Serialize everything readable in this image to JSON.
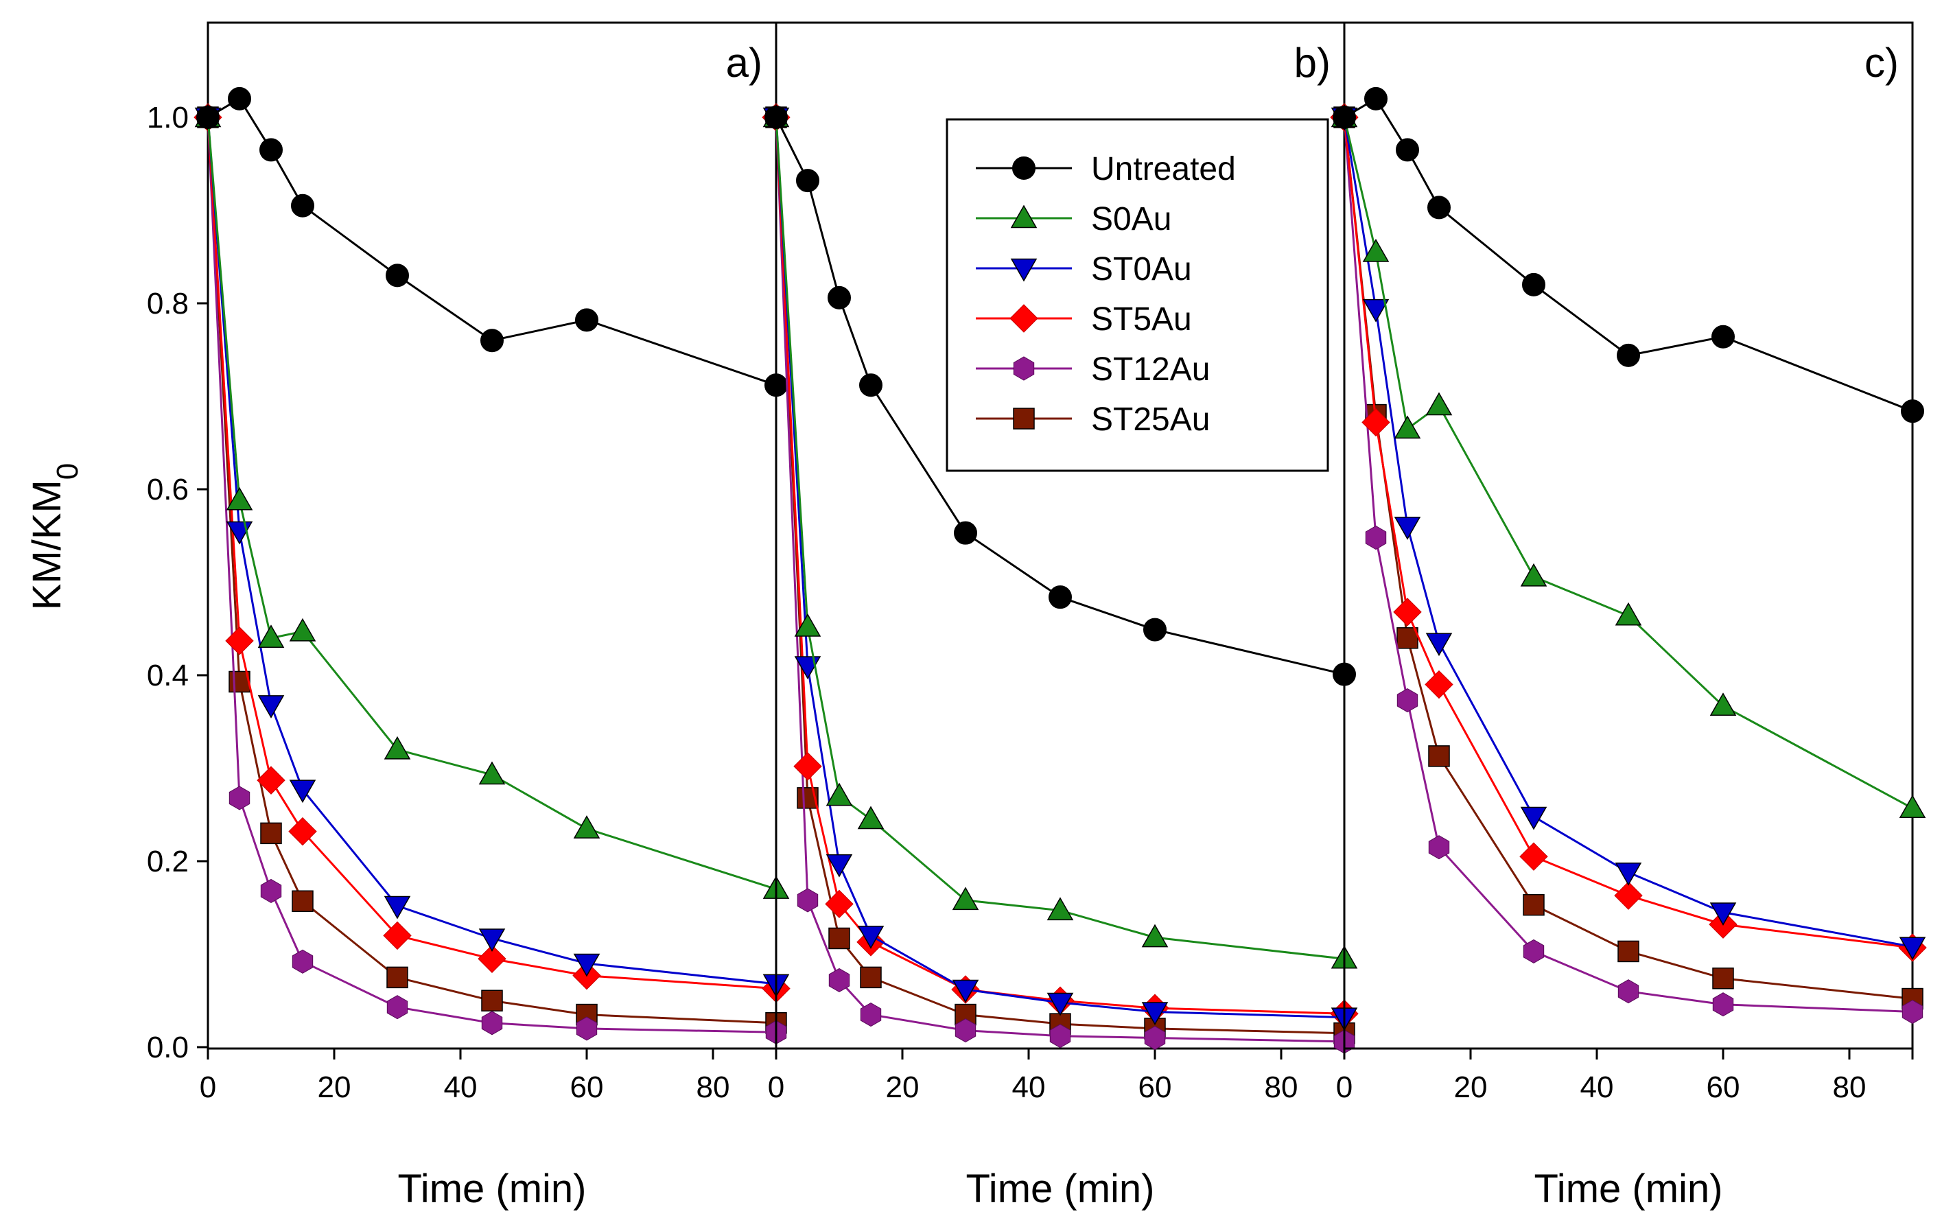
{
  "chart_data": {
    "type": "line",
    "ylabel": "KM/KM",
    "ylabel_subscript": "0",
    "ylim": [
      0,
      1.1
    ],
    "yticks": [
      "0.0",
      "0.2",
      "0.4",
      "0.6",
      "0.8",
      "1.0"
    ],
    "ytick_values": [
      0,
      0.2,
      0.4,
      0.6,
      0.8,
      1.0
    ],
    "legend_position": "upper-middle (panel b)",
    "grid": false,
    "series_styles": [
      {
        "name": "Untreated",
        "color": "#000000",
        "marker": "circle"
      },
      {
        "name": "S0Au",
        "color": "#1a8a1a",
        "marker": "triangle-up"
      },
      {
        "name": "ST0Au",
        "color": "#0000cc",
        "marker": "triangle-down"
      },
      {
        "name": "ST5Au",
        "color": "#ff0000",
        "marker": "diamond"
      },
      {
        "name": "ST12Au",
        "color": "#8e1a8e",
        "marker": "hexagon"
      },
      {
        "name": "ST25Au",
        "color": "#7a1a00",
        "marker": "square"
      }
    ],
    "panels": [
      {
        "label": "a)",
        "xlabel": "Time (min)",
        "xlim": [
          0,
          90
        ],
        "xticks": [
          "0",
          "20",
          "40",
          "60",
          "80"
        ],
        "xtick_values": [
          0,
          20,
          40,
          60,
          80
        ],
        "x": [
          0,
          5,
          10,
          15,
          30,
          45,
          60,
          90
        ],
        "series": [
          {
            "name": "Untreated",
            "values": [
              1.0,
              1.02,
              0.965,
              0.905,
              0.83,
              0.76,
              0.782,
              0.712
            ]
          },
          {
            "name": "S0Au",
            "values": [
              1.0,
              0.588,
              0.44,
              0.447,
              0.32,
              0.293,
              0.235,
              0.17
            ]
          },
          {
            "name": "ST0Au",
            "values": [
              1.0,
              0.555,
              0.368,
              0.277,
              0.152,
              0.117,
              0.09,
              0.068
            ]
          },
          {
            "name": "ST5Au",
            "values": [
              1.0,
              0.437,
              0.287,
              0.232,
              0.12,
              0.095,
              0.077,
              0.063
            ]
          },
          {
            "name": "ST12Au",
            "values": [
              1.0,
              0.268,
              0.168,
              0.092,
              0.043,
              0.026,
              0.02,
              0.016
            ]
          },
          {
            "name": "ST25Au",
            "values": [
              1.0,
              0.393,
              0.23,
              0.157,
              0.075,
              0.05,
              0.035,
              0.026
            ]
          }
        ]
      },
      {
        "label": "b)",
        "xlabel": "Time (min)",
        "xlim": [
          0,
          90
        ],
        "xticks": [
          "0",
          "20",
          "40",
          "60",
          "80"
        ],
        "xtick_values": [
          0,
          20,
          40,
          60,
          80
        ],
        "x": [
          0,
          5,
          10,
          15,
          30,
          45,
          60,
          90
        ],
        "series": [
          {
            "name": "Untreated",
            "values": [
              1.0,
              0.932,
              0.806,
              0.712,
              0.553,
              0.484,
              0.449,
              0.401
            ]
          },
          {
            "name": "S0Au",
            "values": [
              1.0,
              0.452,
              0.27,
              0.245,
              0.158,
              0.147,
              0.118,
              0.095
            ]
          },
          {
            "name": "ST0Au",
            "values": [
              1.0,
              0.41,
              0.197,
              0.12,
              0.062,
              0.048,
              0.038,
              0.032
            ]
          },
          {
            "name": "ST5Au",
            "values": [
              1.0,
              0.302,
              0.154,
              0.113,
              0.062,
              0.05,
              0.042,
              0.036
            ]
          },
          {
            "name": "ST12Au",
            "values": [
              1.0,
              0.158,
              0.072,
              0.035,
              0.018,
              0.012,
              0.01,
              0.006
            ]
          },
          {
            "name": "ST25Au",
            "values": [
              1.0,
              0.268,
              0.117,
              0.075,
              0.035,
              0.025,
              0.02,
              0.015
            ]
          }
        ]
      },
      {
        "label": "c)",
        "xlabel": "Time (min)",
        "xlim": [
          0,
          90
        ],
        "xticks": [
          "0",
          "20",
          "40",
          "60",
          "80"
        ],
        "xtick_values": [
          0,
          20,
          40,
          60,
          80
        ],
        "x": [
          0,
          5,
          10,
          15,
          30,
          45,
          60,
          90
        ],
        "series": [
          {
            "name": "Untreated",
            "values": [
              1.0,
              1.02,
              0.965,
              0.903,
              0.82,
              0.744,
              0.764,
              0.684
            ]
          },
          {
            "name": "S0Au",
            "values": [
              1.0,
              0.855,
              0.665,
              0.69,
              0.506,
              0.464,
              0.367,
              0.257
            ]
          },
          {
            "name": "ST0Au",
            "values": [
              1.0,
              0.794,
              0.56,
              0.435,
              0.248,
              0.188,
              0.145,
              0.108
            ]
          },
          {
            "name": "ST5Au",
            "values": [
              1.0,
              0.672,
              0.468,
              0.39,
              0.205,
              0.163,
              0.132,
              0.107
            ]
          },
          {
            "name": "ST12Au",
            "values": [
              1.0,
              0.548,
              0.373,
              0.215,
              0.103,
              0.06,
              0.046,
              0.038
            ]
          },
          {
            "name": "ST25Au",
            "values": [
              1.0,
              0.68,
              0.44,
              0.313,
              0.153,
              0.103,
              0.074,
              0.052
            ]
          }
        ]
      }
    ]
  }
}
